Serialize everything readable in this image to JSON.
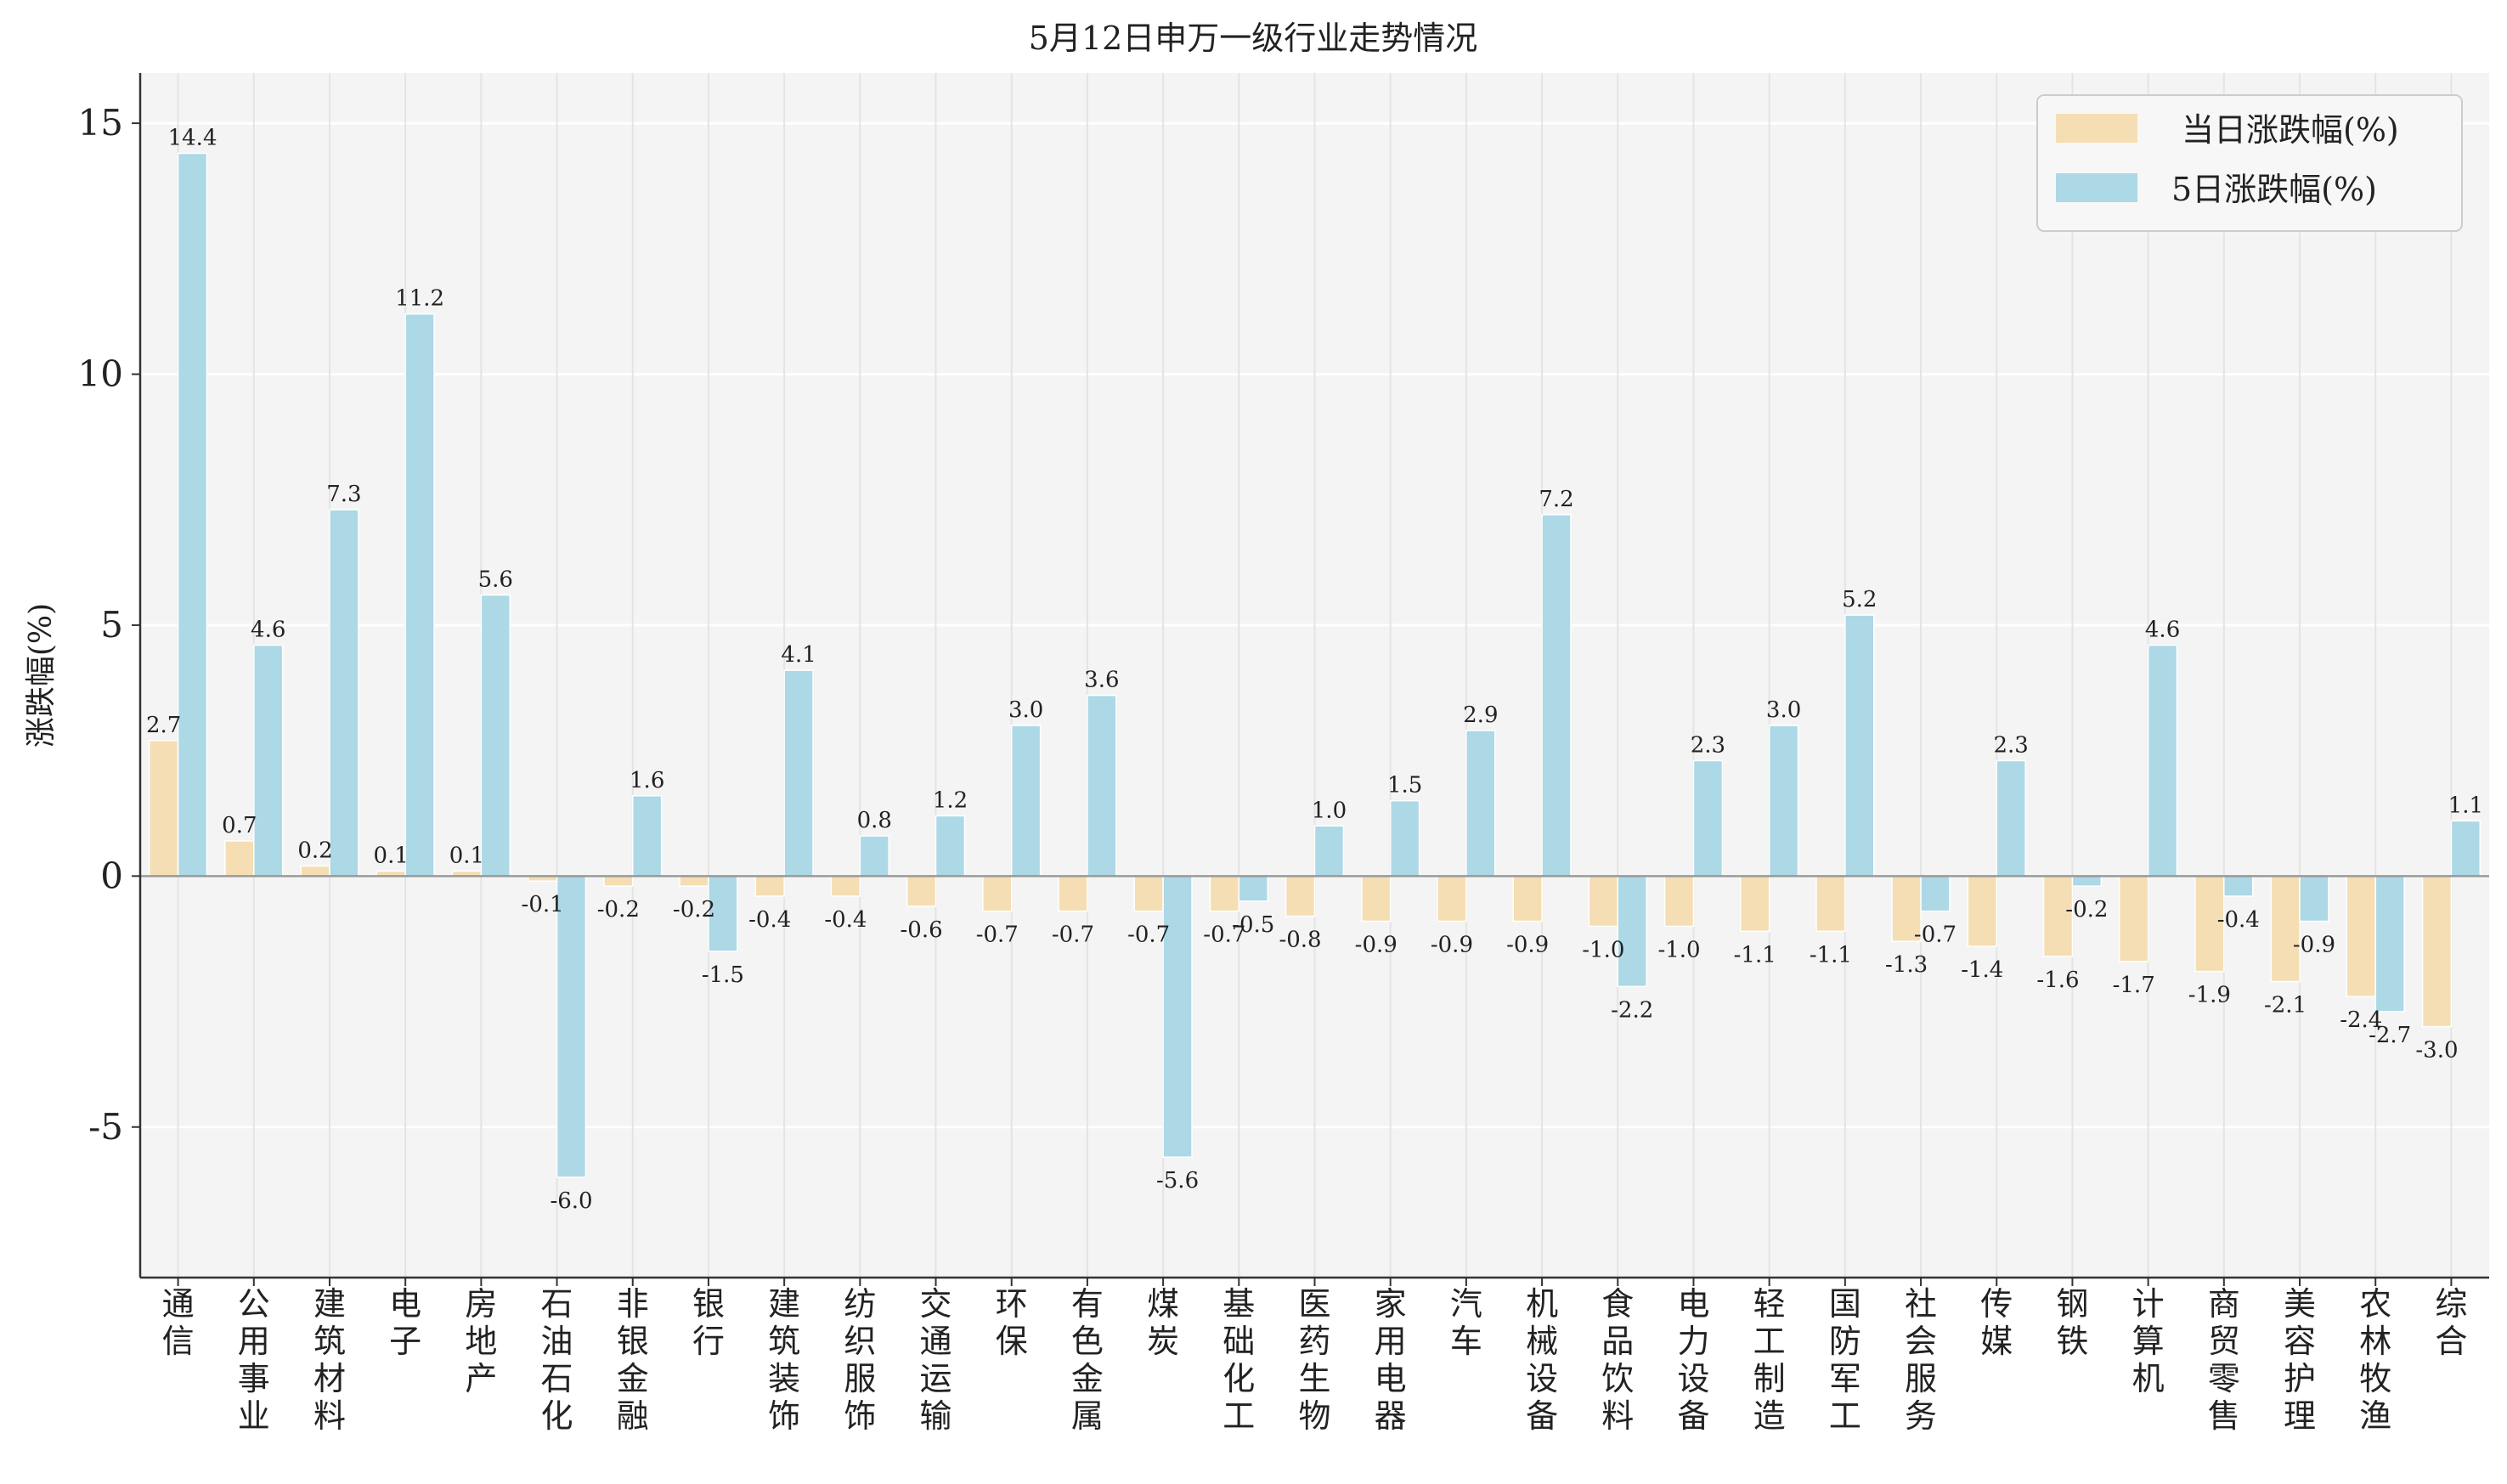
{
  "chart_data": {
    "type": "bar",
    "title": "5月12日申万一级行业走势情况",
    "xlabel": "",
    "ylabel": "涨跌幅(%)",
    "ylim": [
      -8,
      16
    ],
    "yticks": [
      {
        "value": 15,
        "label": "15"
      },
      {
        "value": 10,
        "label": "10"
      },
      {
        "value": 5,
        "label": "5"
      },
      {
        "value": 0,
        "label": "0"
      },
      {
        "value": -5,
        "label": "-5"
      }
    ],
    "grid": true,
    "legend_position": "top-right",
    "categories": [
      "通信",
      "公用事业",
      "建筑材料",
      "电子",
      "房地产",
      "石油石化",
      "非银金融",
      "银行",
      "建筑装饰",
      "纺织服饰",
      "交通运输",
      "环保",
      "有色金属",
      "煤炭",
      "基础化工",
      "医药生物",
      "家用电器",
      "汽车",
      "机械设备",
      "食品饮料",
      "电力设备",
      "轻工制造",
      "国防军工",
      "社会服务",
      "传媒",
      "钢铁",
      "计算机",
      "商贸零售",
      "美容护理",
      "农林牧渔",
      "综合"
    ],
    "series": [
      {
        "name": "当日涨跌幅(%)",
        "color": "#f5deb3",
        "values": [
          2.7,
          0.7,
          0.2,
          0.1,
          0.1,
          -0.1,
          -0.2,
          -0.2,
          -0.4,
          -0.4,
          -0.6,
          -0.7,
          -0.7,
          -0.7,
          -0.7,
          -0.8,
          -0.9,
          -0.9,
          -0.9,
          -1.0,
          -1.0,
          -1.1,
          -1.1,
          -1.3,
          -1.4,
          -1.6,
          -1.7,
          -1.9,
          -2.1,
          -2.4,
          -3.0
        ],
        "labels": [
          "2.7",
          "0.7",
          "0.2",
          "0.1",
          "0.1",
          "-0.1",
          "-0.2",
          "-0.2",
          "-0.4",
          "-0.4",
          "-0.6",
          "-0.7",
          "-0.7",
          "-0.7",
          "-0.7",
          "-0.8",
          "-0.9",
          "-0.9",
          "-0.9",
          "-1.0",
          "-1.0",
          "-1.1",
          "-1.1",
          "-1.3",
          "-1.4",
          "-1.6",
          "-1.7",
          "-1.9",
          "-2.1",
          "-2.4",
          "-3.0"
        ]
      },
      {
        "name": "5日涨跌幅(%)",
        "color": "#add8e6",
        "values": [
          14.4,
          4.6,
          7.3,
          11.2,
          5.6,
          -6.0,
          1.6,
          -1.5,
          4.1,
          0.8,
          1.2,
          3.0,
          3.6,
          -5.6,
          -0.5,
          1.0,
          1.5,
          2.9,
          7.2,
          -2.2,
          2.3,
          3.0,
          5.2,
          -0.7,
          2.3,
          -0.2,
          4.6,
          -0.4,
          -0.9,
          -2.7,
          1.1
        ],
        "labels": [
          "14.4",
          "4.6",
          "7.3",
          "11.2",
          "5.6",
          "-6.0",
          "1.6",
          "-1.5",
          "4.1",
          "0.8",
          "1.2",
          "3.0",
          "3.6",
          "-5.6",
          "-0.5",
          "1.0",
          "1.5",
          "2.9",
          "7.2",
          "-2.2",
          "2.3",
          "3.0",
          "5.2",
          "-0.7",
          "2.3",
          "-0.2",
          "4.6",
          "-0.4",
          "-0.9",
          "-2.7",
          "1.1"
        ]
      }
    ]
  }
}
